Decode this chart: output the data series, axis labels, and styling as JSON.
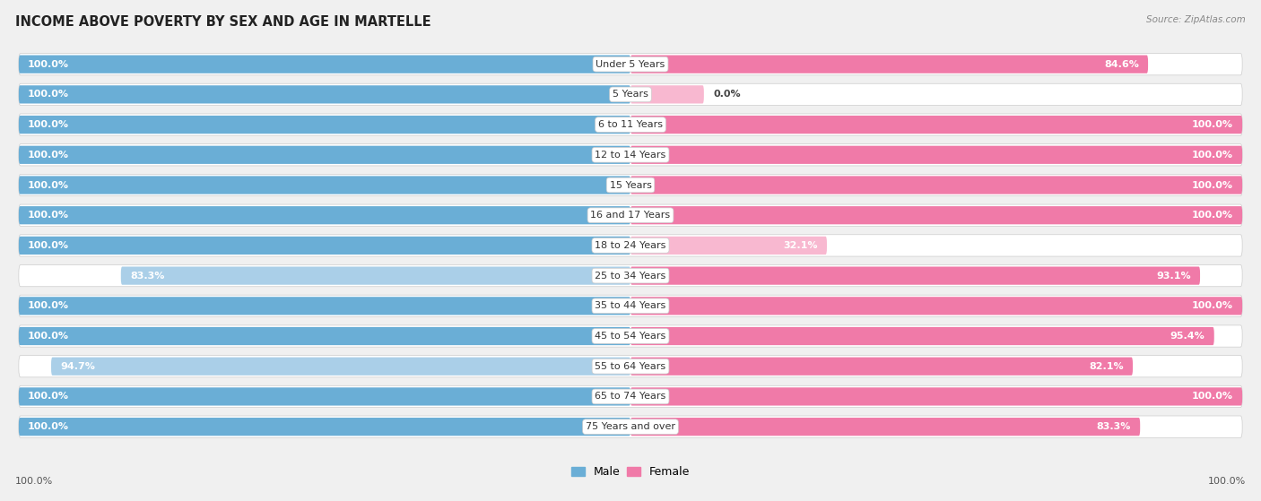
{
  "title": "INCOME ABOVE POVERTY BY SEX AND AGE IN MARTELLE",
  "source": "Source: ZipAtlas.com",
  "categories": [
    "Under 5 Years",
    "5 Years",
    "6 to 11 Years",
    "12 to 14 Years",
    "15 Years",
    "16 and 17 Years",
    "18 to 24 Years",
    "25 to 34 Years",
    "35 to 44 Years",
    "45 to 54 Years",
    "55 to 64 Years",
    "65 to 74 Years",
    "75 Years and over"
  ],
  "male": [
    100.0,
    100.0,
    100.0,
    100.0,
    100.0,
    100.0,
    100.0,
    83.3,
    100.0,
    100.0,
    94.7,
    100.0,
    100.0
  ],
  "female": [
    84.6,
    0.0,
    100.0,
    100.0,
    100.0,
    100.0,
    32.1,
    93.1,
    100.0,
    95.4,
    82.1,
    100.0,
    83.3
  ],
  "male_color": "#6aaed6",
  "female_color": "#f07aa8",
  "male_color_light": "#aacfe8",
  "female_color_light": "#f8b8d0",
  "bg_color": "#e8e8e8",
  "title_fontsize": 10.5,
  "label_fontsize": 8,
  "bar_label_fontsize": 8,
  "max_val": 100.0,
  "bottom_male_label": "100.0%",
  "bottom_female_label": "100.0%",
  "female_0_bar_width": 12.0
}
